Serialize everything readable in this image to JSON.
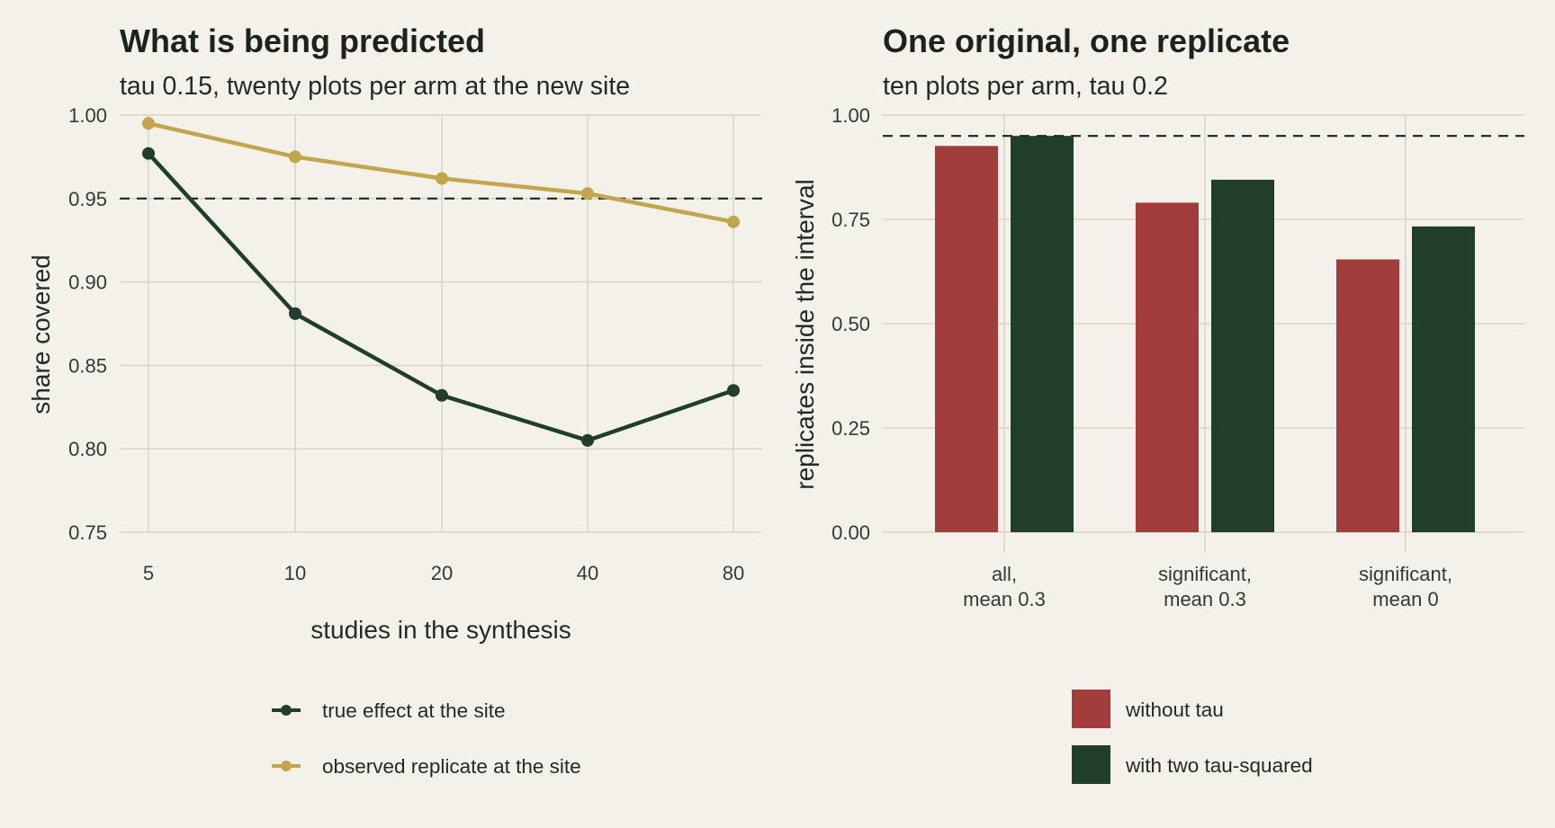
{
  "colors": {
    "background": "#f3f1ea",
    "grid": "#d9d6c8",
    "text": "#252a26",
    "dark_green": "#1f3e2c",
    "gold": "#c2a64b",
    "red": "#a33c3d"
  },
  "left_panel": {
    "title": "What is being predicted",
    "subtitle": "tau 0.15, twenty plots per arm at the new site",
    "xlabel": "studies in the synthesis",
    "ylabel": "share covered",
    "legend": [
      {
        "label": "true effect at the site",
        "color": "#1f3e2c"
      },
      {
        "label": "observed replicate at the site",
        "color": "#c2a64b"
      }
    ]
  },
  "right_panel": {
    "title": "One original, one replicate",
    "subtitle": "ten plots per arm, tau 0.2",
    "ylabel": "replicates inside the interval",
    "legend": [
      {
        "label": "without tau",
        "color": "#a33c3d"
      },
      {
        "label": "with two tau-squared",
        "color": "#1f3e2c"
      }
    ]
  },
  "chart_data": [
    {
      "type": "line",
      "title": "What is being predicted",
      "subtitle": "tau 0.15, twenty plots per arm at the new site",
      "xlabel": "studies in the synthesis",
      "ylabel": "share covered",
      "x_scale": "log2",
      "categories": [
        "5",
        "10",
        "20",
        "40",
        "80"
      ],
      "x": [
        5,
        10,
        20,
        40,
        80
      ],
      "ylim": [
        0.75,
        1.0
      ],
      "yticks": [
        "0.75",
        "0.80",
        "0.85",
        "0.90",
        "0.95",
        "1.00"
      ],
      "reference_line": 0.95,
      "grid": true,
      "legend_position": "bottom",
      "series": [
        {
          "name": "true effect at the site",
          "color": "#1f3e2c",
          "values": [
            0.977,
            0.881,
            0.832,
            0.805,
            0.835
          ]
        },
        {
          "name": "observed replicate at the site",
          "color": "#c2a64b",
          "values": [
            0.995,
            0.975,
            0.962,
            0.953,
            0.936
          ]
        }
      ]
    },
    {
      "type": "bar",
      "title": "One original, one replicate",
      "subtitle": "ten plots per arm, tau 0.2",
      "xlabel": "",
      "ylabel": "replicates inside the interval",
      "categories": [
        "all,\nmean 0.3",
        "significant,\nmean 0.3",
        "significant,\nmean 0"
      ],
      "ylim": [
        0,
        1.0
      ],
      "yticks": [
        "0.00",
        "0.25",
        "0.50",
        "0.75",
        "1.00"
      ],
      "reference_line": 0.95,
      "grid": true,
      "legend_position": "bottom",
      "series": [
        {
          "name": "without tau",
          "color": "#a33c3d",
          "values": [
            0.926,
            0.79,
            0.654
          ]
        },
        {
          "name": "with two tau-squared",
          "color": "#1f3e2c",
          "values": [
            0.95,
            0.845,
            0.733
          ]
        }
      ]
    }
  ]
}
